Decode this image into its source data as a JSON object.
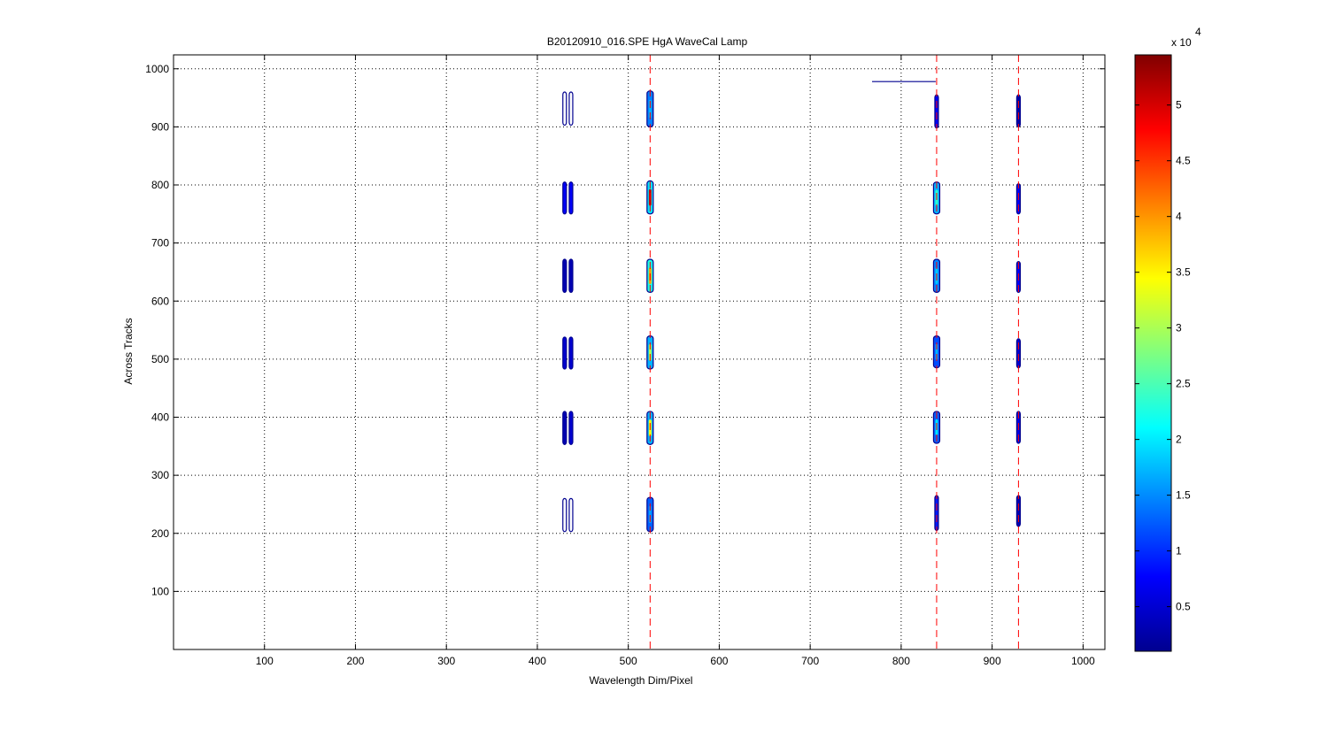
{
  "chart_data": {
    "type": "heatmap",
    "title": "B20120910_016.SPE  HgA WaveCal Lamp",
    "xlabel": "Wavelength Dim/Pixel",
    "ylabel": "Across Tracks",
    "xlim": [
      0,
      1024
    ],
    "ylim": [
      0,
      1024
    ],
    "xticks": [
      100,
      200,
      300,
      400,
      500,
      600,
      700,
      800,
      900,
      1000
    ],
    "yticks": [
      100,
      200,
      300,
      400,
      500,
      600,
      700,
      800,
      900,
      1000
    ],
    "grid": true,
    "colormap": "jet",
    "colorbar": {
      "range": [
        1000,
        54500
      ],
      "ticks": [
        0.5,
        1,
        1.5,
        2,
        2.5,
        3,
        3.5,
        4,
        4.5,
        5
      ],
      "exponent_label": "x 10",
      "exponent": "4"
    },
    "reference_lines": {
      "color": "#ff0000",
      "style": "dashed",
      "x": [
        524,
        839,
        929
      ]
    },
    "contour_blobs": [
      {
        "x": 430,
        "y": [
          203,
          260
        ],
        "level": 0.0
      },
      {
        "x": 437,
        "y": [
          203,
          260
        ],
        "level": 0.0
      },
      {
        "x": 430,
        "y": [
          353,
          410
        ],
        "level": 0.05
      },
      {
        "x": 437,
        "y": [
          353,
          410
        ],
        "level": 0.08
      },
      {
        "x": 430,
        "y": [
          483,
          538
        ],
        "level": 0.08
      },
      {
        "x": 437,
        "y": [
          483,
          538
        ],
        "level": 0.08
      },
      {
        "x": 430,
        "y": [
          615,
          672
        ],
        "level": 0.05
      },
      {
        "x": 437,
        "y": [
          615,
          672
        ],
        "level": 0.05
      },
      {
        "x": 430,
        "y": [
          750,
          805
        ],
        "level": 0.12
      },
      {
        "x": 437,
        "y": [
          750,
          805
        ],
        "level": 0.12
      },
      {
        "x": 430,
        "y": [
          903,
          960
        ],
        "level": 0.0
      },
      {
        "x": 437,
        "y": [
          903,
          960
        ],
        "level": 0.0
      },
      {
        "x": 524,
        "y": [
          203,
          262
        ],
        "level": 0.22,
        "peak": 0.28
      },
      {
        "x": 524,
        "y": [
          353,
          410
        ],
        "level": 0.3,
        "peak": 0.62
      },
      {
        "x": 524,
        "y": [
          483,
          540
        ],
        "level": 0.3,
        "peak": 0.55
      },
      {
        "x": 524,
        "y": [
          615,
          672
        ],
        "level": 0.4,
        "peak": 0.72
      },
      {
        "x": 524,
        "y": [
          750,
          807
        ],
        "level": 0.35,
        "peak": 0.92
      },
      {
        "x": 524,
        "y": [
          900,
          962
        ],
        "level": 0.25,
        "peak": 0.3
      },
      {
        "x": 839,
        "y": [
          205,
          265
        ],
        "level": 0.15
      },
      {
        "x": 839,
        "y": [
          355,
          410
        ],
        "level": 0.22,
        "peak": 0.35
      },
      {
        "x": 839,
        "y": [
          485,
          540
        ],
        "level": 0.2,
        "peak": 0.3
      },
      {
        "x": 839,
        "y": [
          615,
          672
        ],
        "level": 0.25,
        "peak": 0.32
      },
      {
        "x": 839,
        "y": [
          750,
          805
        ],
        "level": 0.3,
        "peak": 0.42
      },
      {
        "x": 839,
        "y": [
          898,
          955
        ],
        "level": 0.12
      },
      {
        "x": 929,
        "y": [
          212,
          265
        ],
        "level": 0.05
      },
      {
        "x": 929,
        "y": [
          355,
          410
        ],
        "level": 0.1
      },
      {
        "x": 929,
        "y": [
          485,
          535
        ],
        "level": 0.08
      },
      {
        "x": 929,
        "y": [
          615,
          668
        ],
        "level": 0.12
      },
      {
        "x": 929,
        "y": [
          750,
          802
        ],
        "level": 0.12
      },
      {
        "x": 929,
        "y": [
          900,
          955
        ],
        "level": 0.04
      }
    ],
    "streak": {
      "x": [
        768,
        838
      ],
      "y": 978,
      "level": 0.03
    }
  }
}
